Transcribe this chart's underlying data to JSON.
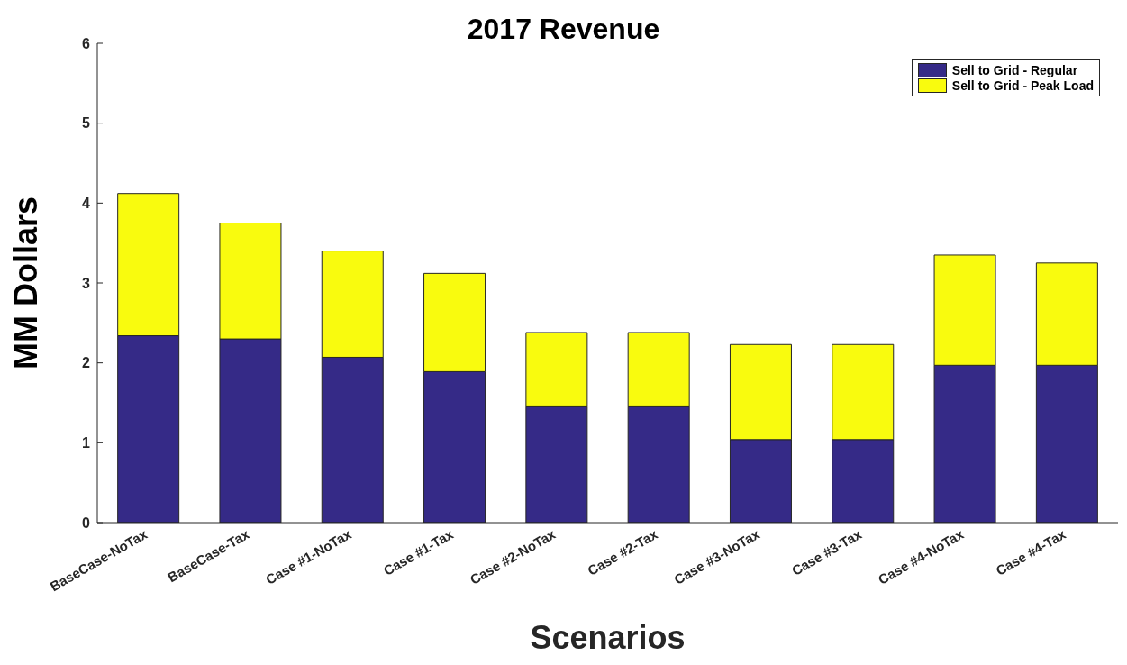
{
  "chart_data": {
    "type": "bar",
    "title": "2017 Revenue",
    "xlabel": "Scenarios",
    "ylabel": "MM Dollars",
    "categories": [
      "BaseCase-NoTax",
      "BaseCase-Tax",
      "Case #1-NoTax",
      "Case #1-Tax",
      "Case #2-NoTax",
      "Case #2-Tax",
      "Case #3-NoTax",
      "Case #3-Tax",
      "Case #4-NoTax",
      "Case #4-Tax"
    ],
    "stacked": true,
    "series": [
      {
        "name": "Sell to Grid - Regular",
        "color": "#352a87",
        "values": [
          2.34,
          2.3,
          2.07,
          1.89,
          1.45,
          1.45,
          1.04,
          1.04,
          1.97,
          1.97
        ]
      },
      {
        "name": "Sell to Grid - Peak Load",
        "color": "#f9fb0e",
        "values": [
          1.78,
          1.45,
          1.33,
          1.23,
          0.93,
          0.93,
          1.19,
          1.19,
          1.38,
          1.28
        ]
      }
    ],
    "ylim": [
      0,
      6
    ],
    "yticks": [
      0,
      1,
      2,
      3,
      4,
      5,
      6
    ],
    "grid": false,
    "legend": "top right"
  }
}
